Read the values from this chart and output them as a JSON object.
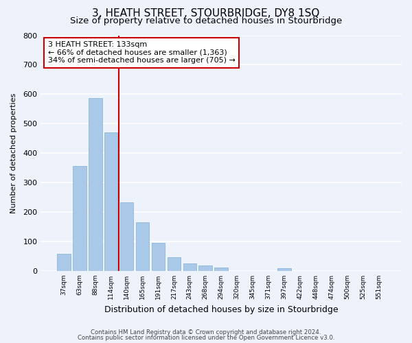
{
  "title": "3, HEATH STREET, STOURBRIDGE, DY8 1SQ",
  "subtitle": "Size of property relative to detached houses in Stourbridge",
  "xlabel": "Distribution of detached houses by size in Stourbridge",
  "ylabel": "Number of detached properties",
  "bar_values": [
    57,
    357,
    588,
    470,
    233,
    165,
    95,
    47,
    25,
    18,
    12,
    0,
    0,
    0,
    8,
    0,
    0,
    0,
    0,
    0,
    0
  ],
  "bar_labels": [
    "37sqm",
    "63sqm",
    "88sqm",
    "114sqm",
    "140sqm",
    "165sqm",
    "191sqm",
    "217sqm",
    "243sqm",
    "268sqm",
    "294sqm",
    "320sqm",
    "345sqm",
    "371sqm",
    "397sqm",
    "422sqm",
    "448sqm",
    "474sqm",
    "500sqm",
    "525sqm",
    "551sqm"
  ],
  "bar_color": "#aac9e8",
  "bar_edge_color": "#80afd4",
  "marker_line_color": "#cc0000",
  "annotation_title": "3 HEATH STREET: 133sqm",
  "annotation_line1": "← 66% of detached houses are smaller (1,363)",
  "annotation_line2": "34% of semi-detached houses are larger (705) →",
  "annotation_box_color": "#ffffff",
  "annotation_box_edge": "#cc0000",
  "ylim": [
    0,
    800
  ],
  "yticks": [
    0,
    100,
    200,
    300,
    400,
    500,
    600,
    700,
    800
  ],
  "footer1": "Contains HM Land Registry data © Crown copyright and database right 2024.",
  "footer2": "Contains public sector information licensed under the Open Government Licence v3.0.",
  "bg_color": "#eef2fb",
  "grid_color": "#ffffff",
  "title_fontsize": 11,
  "subtitle_fontsize": 9.5
}
